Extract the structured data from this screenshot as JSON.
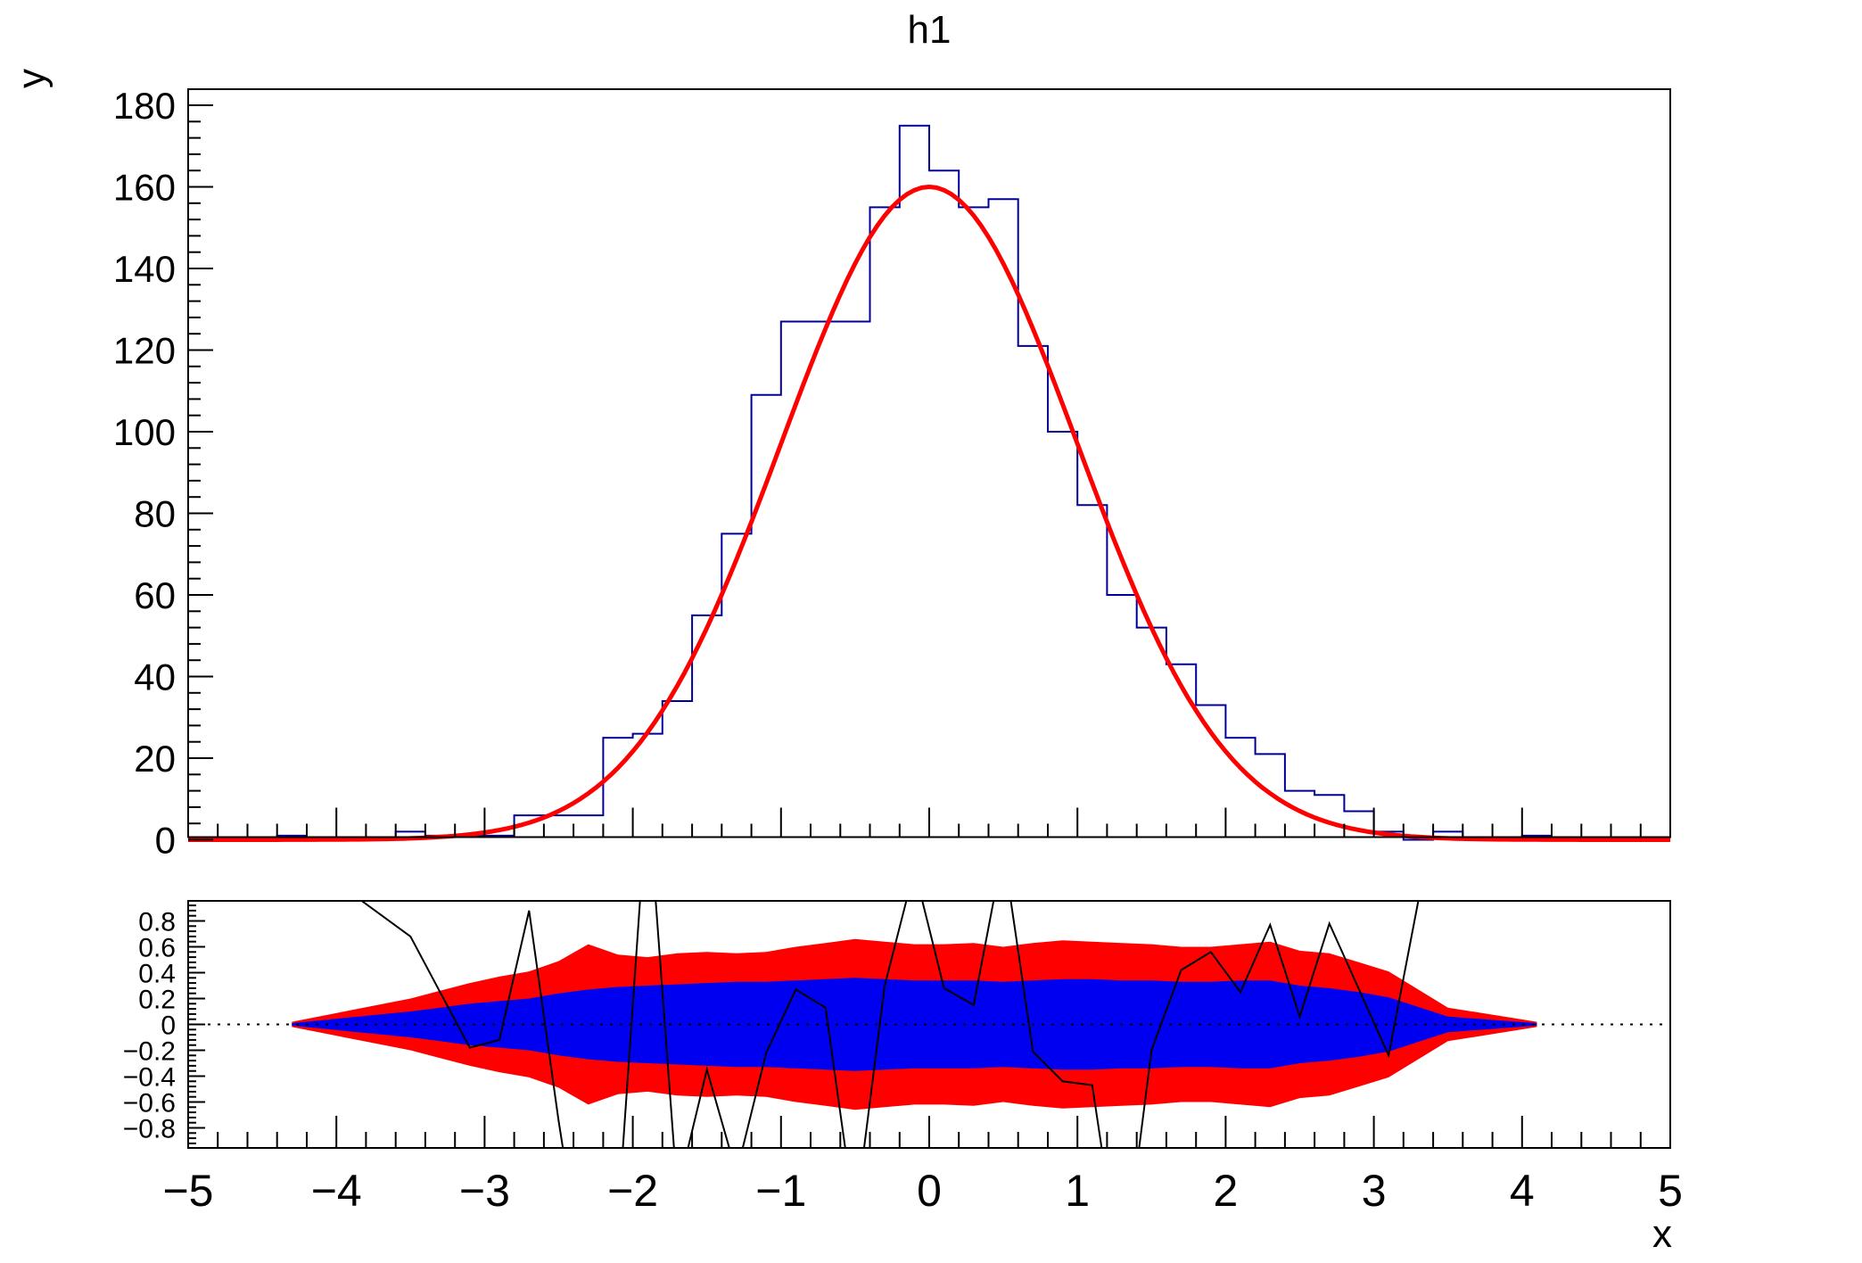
{
  "title": "h1",
  "axis_titles": {
    "x": "x",
    "y": "y"
  },
  "colors": {
    "background": "#ffffff",
    "frame": "#000000",
    "histogram_line": "#000099",
    "fit_line": "#ff0000",
    "band_outer": "#ff0000",
    "band_inner": "#0000f0",
    "residual_line": "#000000",
    "zero_line": "#000000"
  },
  "chart_data": [
    {
      "type": "bar",
      "subtype": "histogram-steps-with-gaussian-fit",
      "title": "h1",
      "xlabel": "x",
      "ylabel": "y",
      "xlim": [
        -5,
        5
      ],
      "ylim": [
        0,
        183.8
      ],
      "grid": false,
      "legend": "none",
      "bin_width": 0.2,
      "bin_start": -5,
      "values": [
        0,
        0,
        0,
        1,
        0,
        0,
        0,
        2,
        1,
        1,
        1,
        6,
        6,
        6,
        25,
        26,
        34,
        55,
        75,
        109,
        127,
        127,
        127,
        155,
        175,
        164,
        155,
        157,
        121,
        100,
        82,
        60,
        52,
        43,
        33,
        25,
        21,
        12,
        11,
        7,
        2,
        0,
        2,
        0,
        0,
        1,
        0,
        0,
        0,
        0
      ],
      "fit": {
        "shape": "gaussian",
        "amplitude": 160,
        "mean": 0,
        "sigma": 1.0
      },
      "y_tick_labels": [
        "0",
        "20",
        "40",
        "60",
        "80",
        "100",
        "120",
        "140",
        "160",
        "180"
      ],
      "y_tick_values": [
        0,
        20,
        40,
        60,
        80,
        100,
        120,
        140,
        160,
        180
      ],
      "y_minor_step": 4,
      "x_minor_step": 0.2,
      "x_major_step": 1
    },
    {
      "type": "area",
      "subtype": "residual-confidence-bands",
      "xlabel": "x",
      "xlim": [
        -5,
        5
      ],
      "ylim": [
        -0.9553,
        0.9553
      ],
      "grid": false,
      "zero_line": "dotted",
      "x_tick_labels": [
        "−5",
        "−4",
        "−3",
        "−2",
        "−1",
        "0",
        "1",
        "2",
        "3",
        "4",
        "5"
      ],
      "x_tick_values": [
        -5,
        -4,
        -3,
        -2,
        -1,
        0,
        1,
        2,
        3,
        4,
        5
      ],
      "y_tick_labels": [
        "0.8",
        "0.6",
        "0.4",
        "0.2",
        "0",
        "−0.2",
        "−0.4",
        "−0.6",
        "−0.8"
      ],
      "y_tick_values": [
        0.8,
        0.6,
        0.4,
        0.2,
        0,
        -0.2,
        -0.4,
        -0.6,
        -0.8
      ],
      "y_minor_step": 0.04,
      "bands": [
        [
          -4.3,
          0.02,
          0.01
        ],
        [
          -3.5,
          0.2,
          0.1
        ],
        [
          -3.3,
          0.26,
          0.13
        ],
        [
          -3.1,
          0.32,
          0.16
        ],
        [
          -2.9,
          0.37,
          0.18
        ],
        [
          -2.7,
          0.41,
          0.2
        ],
        [
          -2.5,
          0.49,
          0.24
        ],
        [
          -2.3,
          0.62,
          0.27
        ],
        [
          -2.1,
          0.54,
          0.29
        ],
        [
          -1.9,
          0.52,
          0.3
        ],
        [
          -1.7,
          0.55,
          0.31
        ],
        [
          -1.5,
          0.56,
          0.32
        ],
        [
          -1.3,
          0.55,
          0.33
        ],
        [
          -1.1,
          0.56,
          0.33
        ],
        [
          -0.9,
          0.6,
          0.34
        ],
        [
          -0.7,
          0.63,
          0.35
        ],
        [
          -0.5,
          0.66,
          0.36
        ],
        [
          -0.3,
          0.64,
          0.35
        ],
        [
          -0.1,
          0.62,
          0.34
        ],
        [
          0.1,
          0.62,
          0.34
        ],
        [
          0.3,
          0.63,
          0.34
        ],
        [
          0.5,
          0.6,
          0.33
        ],
        [
          0.7,
          0.63,
          0.34
        ],
        [
          0.9,
          0.65,
          0.35
        ],
        [
          1.1,
          0.64,
          0.35
        ],
        [
          1.3,
          0.63,
          0.34
        ],
        [
          1.5,
          0.62,
          0.34
        ],
        [
          1.7,
          0.6,
          0.33
        ],
        [
          1.9,
          0.6,
          0.33
        ],
        [
          2.1,
          0.62,
          0.34
        ],
        [
          2.3,
          0.64,
          0.34
        ],
        [
          2.5,
          0.57,
          0.3
        ],
        [
          2.7,
          0.55,
          0.28
        ],
        [
          2.9,
          0.48,
          0.25
        ],
        [
          3.1,
          0.41,
          0.21
        ],
        [
          3.5,
          0.13,
          0.06
        ],
        [
          4.1,
          0.02,
          0.01
        ]
      ],
      "residuals": [
        [
          -4.3,
          1.35
        ],
        [
          -3.5,
          0.68
        ],
        [
          -3.3,
          0.25
        ],
        [
          -3.1,
          -0.18
        ],
        [
          -2.9,
          -0.12
        ],
        [
          -2.7,
          0.88
        ],
        [
          -2.5,
          -0.75
        ],
        [
          -2.3,
          -2.2
        ],
        [
          -2.1,
          -1.5
        ],
        [
          -1.9,
          1.8
        ],
        [
          -1.7,
          -1.3
        ],
        [
          -1.5,
          -0.35
        ],
        [
          -1.3,
          -1.15
        ],
        [
          -1.1,
          -0.22
        ],
        [
          -0.9,
          0.27
        ],
        [
          -0.7,
          0.13
        ],
        [
          -0.5,
          -1.5
        ],
        [
          -0.3,
          0.3
        ],
        [
          -0.1,
          1.2
        ],
        [
          0.1,
          0.28
        ],
        [
          0.3,
          0.15
        ],
        [
          0.5,
          1.35
        ],
        [
          0.7,
          -0.21
        ],
        [
          0.9,
          -0.44
        ],
        [
          1.1,
          -0.47
        ],
        [
          1.3,
          -2.0
        ],
        [
          1.5,
          -0.2
        ],
        [
          1.7,
          0.42
        ],
        [
          1.9,
          0.56
        ],
        [
          2.1,
          0.25
        ],
        [
          2.3,
          0.77
        ],
        [
          2.5,
          0.06
        ],
        [
          2.7,
          0.78
        ],
        [
          2.9,
          0.27
        ],
        [
          3.1,
          -0.24
        ],
        [
          3.5,
          2.15
        ],
        [
          4.1,
          8.0
        ]
      ]
    }
  ]
}
